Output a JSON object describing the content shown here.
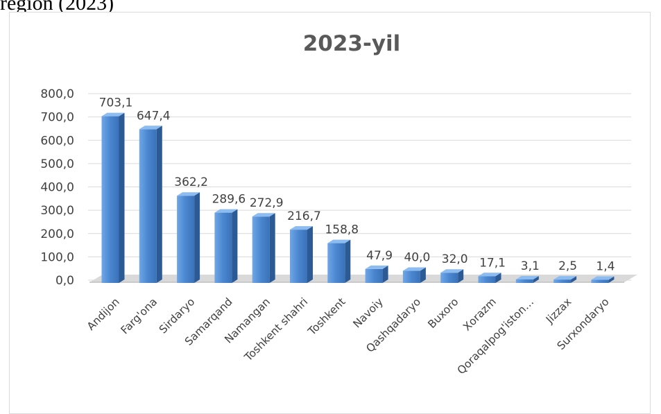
{
  "top_text": "region (2023)",
  "chart_data": {
    "type": "bar",
    "title": "2023-yil",
    "xlabel": "",
    "ylabel": "",
    "ylim": [
      0,
      800
    ],
    "yticks": [
      "0,0",
      "100,0",
      "200,0",
      "300,0",
      "400,0",
      "500,0",
      "600,0",
      "700,0",
      "800,0"
    ],
    "grid": true,
    "legend": "none",
    "bar_color": "#4a86cf",
    "categories": [
      "Andijon",
      "Farg'ona",
      "Sirdaryo",
      "Samarqand",
      "Namangan",
      "Toshkent shahri",
      "Toshkent",
      "Navoiy",
      "Qashqadaryo",
      "Buxoro",
      "Xorazm",
      "Qoraqalpog'iston…",
      "Jizzax",
      "Surxondaryo"
    ],
    "values": [
      703.1,
      647.4,
      362.2,
      289.6,
      272.9,
      216.7,
      158.8,
      47.9,
      40.0,
      32.0,
      17.1,
      3.1,
      2.5,
      1.4
    ],
    "value_labels": [
      "703,1",
      "647,4",
      "362,2",
      "289,6",
      "272,9",
      "216,7",
      "158,8",
      "47,9",
      "40,0",
      "32,0",
      "17,1",
      "3,1",
      "2,5",
      "1,4"
    ]
  }
}
